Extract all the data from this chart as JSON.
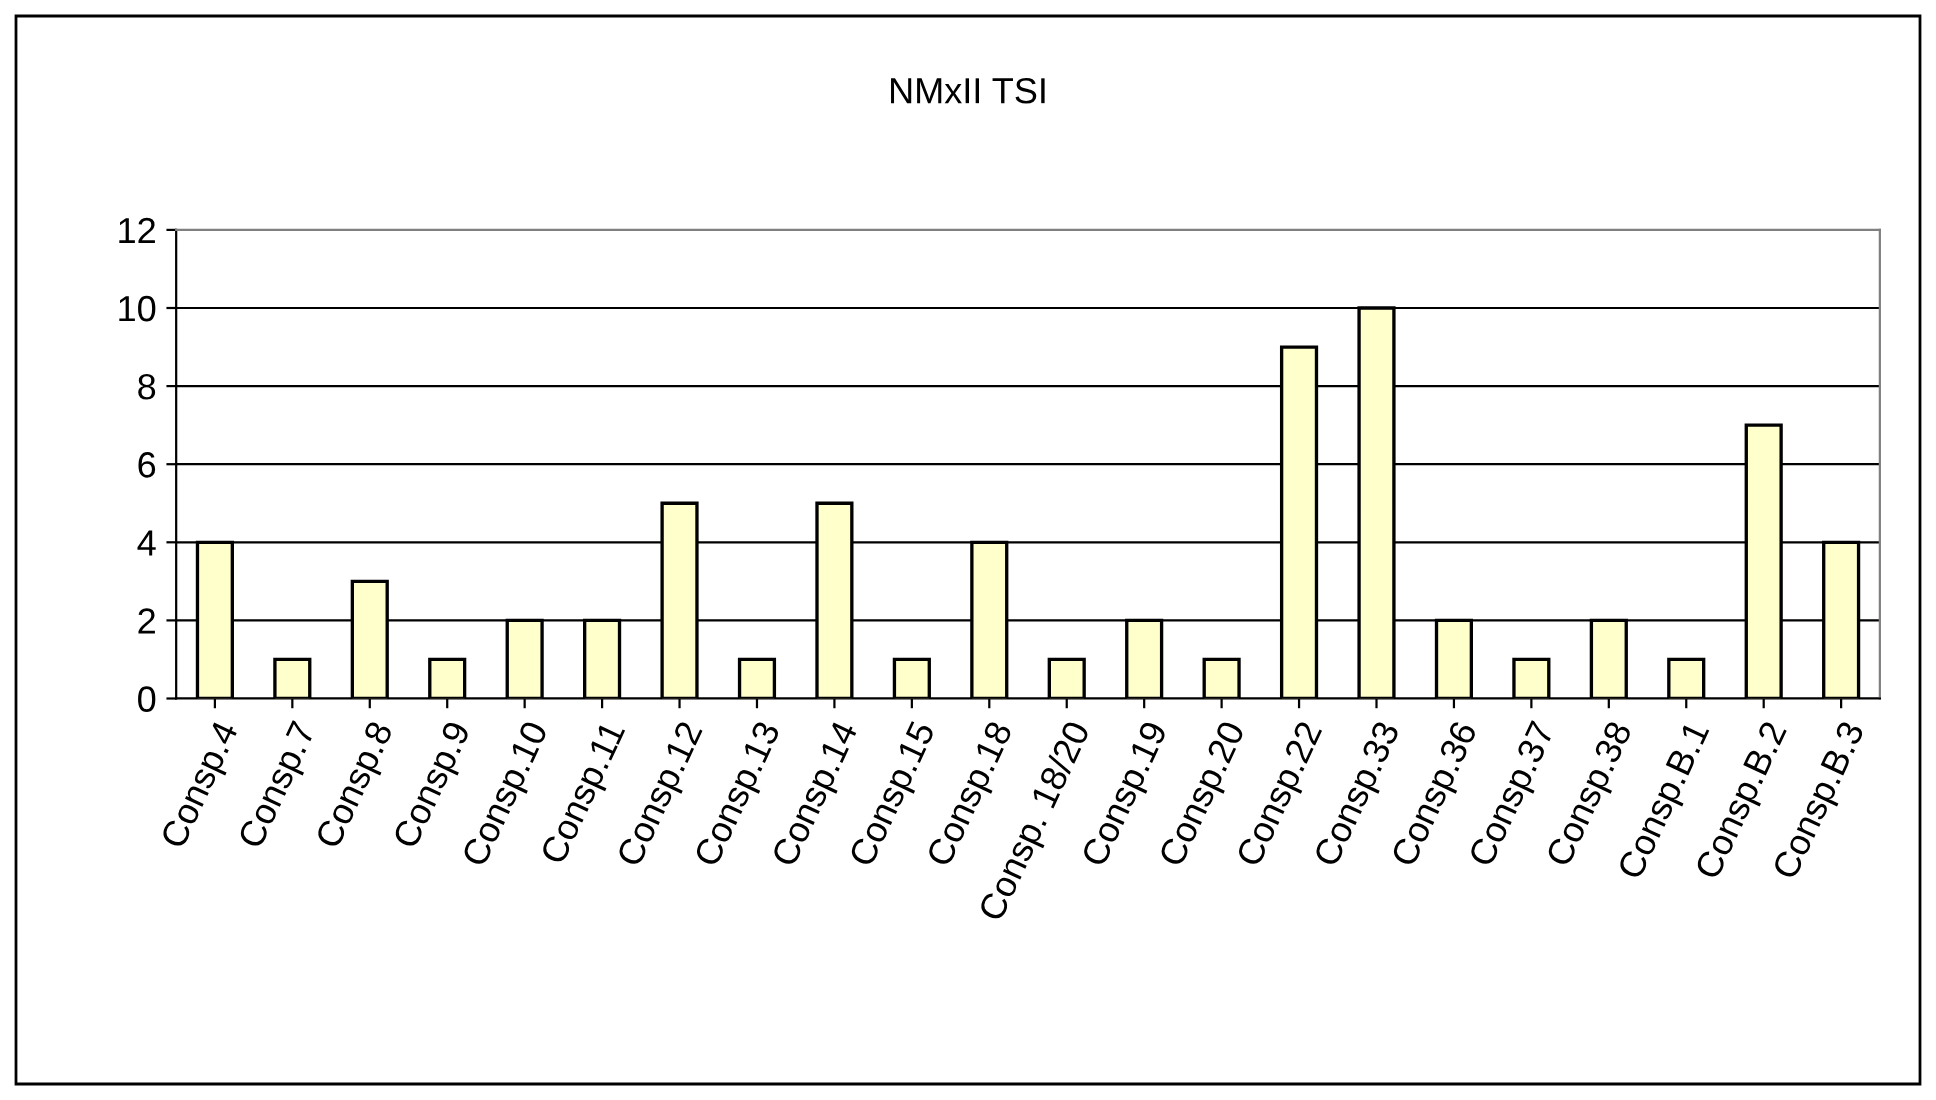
{
  "chart_data": {
    "type": "bar",
    "title": "NMxII TSI",
    "categories": [
      "Consp.4",
      "Consp.7",
      "Consp.8",
      "Consp.9",
      "Consp.10",
      "Consp.11",
      "Consp.12",
      "Consp.13",
      "Consp.14",
      "Consp.15",
      "Consp.18",
      "Consp. 18/20",
      "Consp.19",
      "Consp.20",
      "Consp.22",
      "Consp.33",
      "Consp.36",
      "Consp.37",
      "Consp.38",
      "Consp.B.1",
      "Consp.B.2",
      "Consp.B.3"
    ],
    "values": [
      4,
      1,
      3,
      1,
      2,
      2,
      5,
      1,
      5,
      1,
      4,
      1,
      2,
      1,
      9,
      10,
      2,
      1,
      2,
      1,
      7,
      4
    ],
    "color": "#ffffcc",
    "ylim": [
      0,
      12
    ],
    "yticks": [
      0,
      2,
      4,
      6,
      8,
      10,
      12
    ],
    "grid": "y",
    "legend": false
  }
}
